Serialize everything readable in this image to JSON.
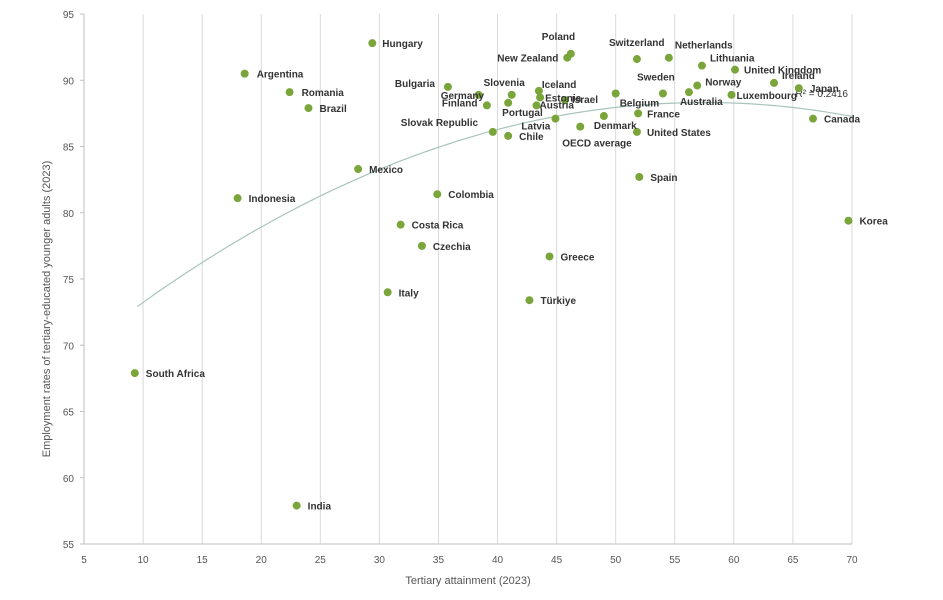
{
  "chart_data": {
    "type": "scatter",
    "xlabel": "Tertiary attainment (2023)",
    "ylabel": "Employment rates of tertiary-educated younger adults (2023)",
    "xlim": [
      5,
      70
    ],
    "ylim": [
      55,
      95
    ],
    "xticks": [
      5,
      10,
      15,
      20,
      25,
      30,
      35,
      40,
      45,
      50,
      55,
      60,
      65,
      70
    ],
    "yticks": [
      55,
      60,
      65,
      70,
      75,
      80,
      85,
      90,
      95
    ],
    "grid": "vertical",
    "point_color": "#7aa53a",
    "trend_color": "#a8c4bd",
    "r_squared_label": "R² = 0.2416",
    "trendline": {
      "type": "quadratic",
      "a": -0.0067,
      "b": 0.77,
      "c": 66.2,
      "x_range": [
        9.5,
        70
      ]
    },
    "points": [
      {
        "label": "Hungary",
        "x": 29.4,
        "y": 92.8
      },
      {
        "label": "Poland",
        "x": 46.2,
        "y": 92.0
      },
      {
        "label": "New Zealand",
        "x": 45.9,
        "y": 91.7
      },
      {
        "label": "Switzerland",
        "x": 51.8,
        "y": 91.6
      },
      {
        "label": "Netherlands",
        "x": 54.5,
        "y": 91.7
      },
      {
        "label": "Lithuania",
        "x": 57.3,
        "y": 91.1
      },
      {
        "label": "United Kingdom",
        "x": 60.1,
        "y": 90.8
      },
      {
        "label": "Argentina",
        "x": 18.6,
        "y": 90.5
      },
      {
        "label": "Ireland",
        "x": 63.4,
        "y": 89.8
      },
      {
        "label": "Japan",
        "x": 65.5,
        "y": 89.4
      },
      {
        "label": "Bulgaria",
        "x": 35.8,
        "y": 89.5
      },
      {
        "label": "Romania",
        "x": 22.4,
        "y": 89.1
      },
      {
        "label": "Iceland",
        "x": 43.5,
        "y": 89.2
      },
      {
        "label": "Slovenia",
        "x": 38.4,
        "y": 88.9
      },
      {
        "label": "Germany",
        "x": 41.2,
        "y": 88.9
      },
      {
        "label": "Estonia",
        "x": 43.6,
        "y": 88.7
      },
      {
        "label": "Sweden",
        "x": 54.0,
        "y": 89.0
      },
      {
        "label": "Norway",
        "x": 56.9,
        "y": 89.6
      },
      {
        "label": "Australia",
        "x": 56.2,
        "y": 89.1
      },
      {
        "label": "Luxembourg",
        "x": 59.8,
        "y": 88.9
      },
      {
        "label": "Belgium",
        "x": 50.0,
        "y": 89.0
      },
      {
        "label": "Finland",
        "x": 39.1,
        "y": 88.1
      },
      {
        "label": "Portugal",
        "x": 40.9,
        "y": 88.3
      },
      {
        "label": "Austria",
        "x": 43.3,
        "y": 88.1
      },
      {
        "label": "Israel",
        "x": 45.7,
        "y": 88.5
      },
      {
        "label": "Brazil",
        "x": 24.0,
        "y": 87.9
      },
      {
        "label": "France",
        "x": 51.9,
        "y": 87.5
      },
      {
        "label": "Latvia",
        "x": 44.9,
        "y": 87.1
      },
      {
        "label": "Denmark",
        "x": 49.0,
        "y": 87.3
      },
      {
        "label": "Canada",
        "x": 66.7,
        "y": 87.1
      },
      {
        "label": "Slovak Republic",
        "x": 39.6,
        "y": 86.1
      },
      {
        "label": "Chile",
        "x": 40.9,
        "y": 85.8
      },
      {
        "label": "OECD average",
        "x": 47.0,
        "y": 86.5
      },
      {
        "label": "United States",
        "x": 51.8,
        "y": 86.1
      },
      {
        "label": "Mexico",
        "x": 28.2,
        "y": 83.3
      },
      {
        "label": "Spain",
        "x": 52.0,
        "y": 82.7
      },
      {
        "label": "Colombia",
        "x": 34.9,
        "y": 81.4
      },
      {
        "label": "Indonesia",
        "x": 18.0,
        "y": 81.1
      },
      {
        "label": "Korea",
        "x": 69.7,
        "y": 79.4
      },
      {
        "label": "Costa Rica",
        "x": 31.8,
        "y": 79.1
      },
      {
        "label": "Czechia",
        "x": 33.6,
        "y": 77.5
      },
      {
        "label": "Greece",
        "x": 44.4,
        "y": 76.7
      },
      {
        "label": "Italy",
        "x": 30.7,
        "y": 74.0
      },
      {
        "label": "Türkiye",
        "x": 42.7,
        "y": 73.4
      },
      {
        "label": "South Africa",
        "x": 9.3,
        "y": 67.9
      },
      {
        "label": "India",
        "x": 23.0,
        "y": 57.9
      }
    ]
  }
}
